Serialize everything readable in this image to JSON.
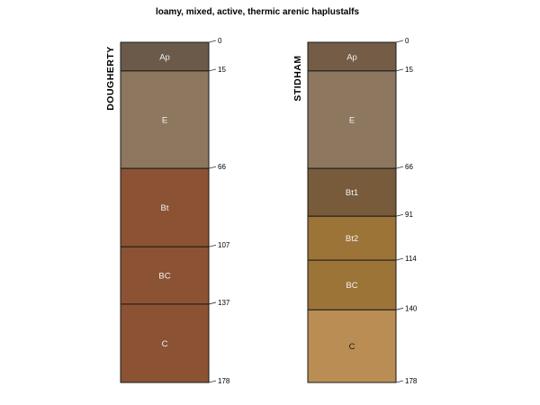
{
  "chart_data": {
    "type": "soil-profile-sketch",
    "title": "loamy, mixed, active, thermic arenic haplustalfs",
    "depth_range": [
      0,
      178
    ],
    "depth_units": "cm",
    "profiles": [
      {
        "name": "DOUGHERTY",
        "horizons": [
          {
            "name": "Ap",
            "top": 0,
            "bottom": 15,
            "color": "#6b5a4a",
            "label_color": "#f2f2f2"
          },
          {
            "name": "E",
            "top": 15,
            "bottom": 66,
            "color": "#8d775e",
            "label_color": "#f2f2f2"
          },
          {
            "name": "Bt",
            "top": 66,
            "bottom": 107,
            "color": "#8b5333",
            "label_color": "#f2f2f2"
          },
          {
            "name": "BC",
            "top": 107,
            "bottom": 137,
            "color": "#8b5333",
            "label_color": "#f2f2f2"
          },
          {
            "name": "C",
            "top": 137,
            "bottom": 178,
            "color": "#8b5333",
            "label_color": "#f2f2f2"
          }
        ],
        "depth_ticks": [
          "0",
          "15",
          "66",
          "107",
          "137",
          "178"
        ]
      },
      {
        "name": "STIDHAM",
        "horizons": [
          {
            "name": "Ap",
            "top": 0,
            "bottom": 15,
            "color": "#745c46",
            "label_color": "#f2f2f2"
          },
          {
            "name": "E",
            "top": 15,
            "bottom": 66,
            "color": "#8d775e",
            "label_color": "#f2f2f2"
          },
          {
            "name": "Bt1",
            "top": 66,
            "bottom": 91,
            "color": "#775b3b",
            "label_color": "#f2f2f2"
          },
          {
            "name": "Bt2",
            "top": 91,
            "bottom": 114,
            "color": "#9c7438",
            "label_color": "#f2f2f2"
          },
          {
            "name": "BC",
            "top": 114,
            "bottom": 140,
            "color": "#9c7438",
            "label_color": "#f2f2f2"
          },
          {
            "name": "C",
            "top": 140,
            "bottom": 178,
            "color": "#b98d53",
            "label_color": "#1a1a1a"
          }
        ],
        "depth_ticks": [
          "0",
          "15",
          "66",
          "91",
          "114",
          "140",
          "178"
        ]
      }
    ]
  }
}
